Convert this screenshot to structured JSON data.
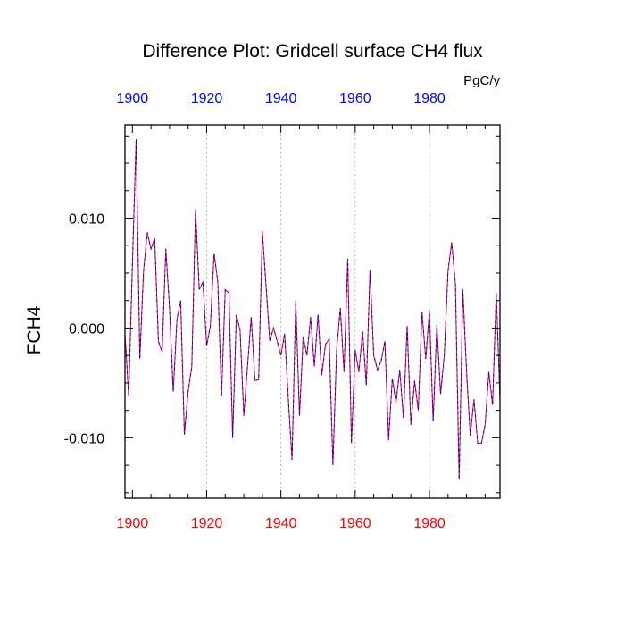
{
  "chart_data": {
    "type": "line",
    "title": "Difference Plot: Gridcell surface CH4 flux",
    "units_label": "PgC/y",
    "ylabel": "FCH4",
    "xlabel": "",
    "xlim": [
      1898,
      1999
    ],
    "ylim": [
      -0.0155,
      0.0185
    ],
    "x_ticks": [
      1900,
      1920,
      1940,
      1960,
      1980
    ],
    "x_tick_labels": [
      "1900",
      "1920",
      "1940",
      "1960",
      "1980"
    ],
    "x_minor_step": 5,
    "y_ticks": [
      -0.01,
      0.0,
      0.01
    ],
    "y_tick_labels": [
      "-0.010",
      "0.000",
      "0.010"
    ],
    "y_minor_step": 0.0025,
    "vertical_gridlines": [
      1920,
      1940,
      1960,
      1980
    ],
    "colors": {
      "bottom_axis_labels": "#ff0000",
      "top_axis_labels": "#0000ff",
      "series_1": "#ff0000",
      "series_2": "#0000ff",
      "grid": "#aaaaaa",
      "axis": "#000000"
    },
    "series": [
      {
        "name": "series-red",
        "color": "#ff0000",
        "x": [
          1898,
          1899,
          1900,
          1901,
          1902,
          1903,
          1904,
          1905,
          1906,
          1907,
          1908,
          1909,
          1910,
          1911,
          1912,
          1913,
          1914,
          1915,
          1916,
          1917,
          1918,
          1919,
          1920,
          1921,
          1922,
          1923,
          1924,
          1925,
          1926,
          1927,
          1928,
          1929,
          1930,
          1931,
          1932,
          1933,
          1934,
          1935,
          1936,
          1937,
          1938,
          1939,
          1940,
          1941,
          1942,
          1943,
          1944,
          1945,
          1946,
          1947,
          1948,
          1949,
          1950,
          1951,
          1952,
          1953,
          1954,
          1955,
          1956,
          1957,
          1958,
          1959,
          1960,
          1961,
          1962,
          1963,
          1964,
          1965,
          1966,
          1967,
          1968,
          1969,
          1970,
          1971,
          1972,
          1973,
          1974,
          1975,
          1976,
          1977,
          1978,
          1979,
          1980,
          1981,
          1982,
          1983,
          1984,
          1985,
          1986,
          1987,
          1988,
          1989,
          1990,
          1991,
          1992,
          1993,
          1994,
          1995,
          1996,
          1997,
          1998,
          1999
        ],
        "y": [
          -0.0005,
          -0.0062,
          0.0058,
          0.0172,
          -0.0028,
          0.0052,
          0.0087,
          0.0072,
          0.0082,
          -0.0012,
          -0.0022,
          0.0072,
          0.0018,
          -0.0058,
          0.0008,
          0.0025,
          -0.0097,
          -0.0058,
          -0.0035,
          0.0108,
          0.0035,
          0.0042,
          -0.0016,
          0.0002,
          0.0068,
          0.0042,
          -0.0062,
          0.0035,
          0.0032,
          -0.01,
          0.0012,
          -0.0002,
          -0.008,
          -0.0035,
          0.001,
          -0.0048,
          -0.0047,
          0.0088,
          0.0038,
          -0.0012,
          0.0,
          -0.0012,
          -0.0025,
          -0.0005,
          -0.0065,
          -0.012,
          0.0025,
          -0.008,
          -0.0008,
          -0.0025,
          0.001,
          -0.0035,
          0.0012,
          -0.0043,
          -0.0015,
          -0.001,
          -0.0125,
          -0.002,
          0.0018,
          -0.004,
          0.0063,
          -0.0105,
          -0.002,
          -0.004,
          -0.0003,
          -0.0052,
          0.0053,
          -0.0025,
          -0.0038,
          -0.003,
          -0.0012,
          -0.0102,
          -0.0046,
          -0.0068,
          -0.0038,
          -0.0082,
          0.0002,
          -0.0088,
          -0.0048,
          -0.0075,
          0.0015,
          -0.0028,
          0.0016,
          -0.0085,
          0.0003,
          -0.006,
          -0.0025,
          0.0052,
          0.0078,
          0.004,
          -0.0138,
          0.0035,
          -0.004,
          -0.0098,
          -0.0065,
          -0.0105,
          -0.0105,
          -0.0088,
          -0.004,
          -0.007,
          0.0032,
          -0.0065
        ]
      },
      {
        "name": "series-blue",
        "color": "#0000ff",
        "x": [
          1898,
          1899,
          1900,
          1901,
          1902,
          1903,
          1904,
          1905,
          1906,
          1907,
          1908,
          1909,
          1910,
          1911,
          1912,
          1913,
          1914,
          1915,
          1916,
          1917,
          1918,
          1919,
          1920,
          1921,
          1922,
          1923,
          1924,
          1925,
          1926,
          1927,
          1928,
          1929,
          1930,
          1931,
          1932,
          1933,
          1934,
          1935,
          1936,
          1937,
          1938,
          1939,
          1940,
          1941,
          1942,
          1943,
          1944,
          1945,
          1946,
          1947,
          1948,
          1949,
          1950,
          1951,
          1952,
          1953,
          1954,
          1955,
          1956,
          1957,
          1958,
          1959,
          1960,
          1961,
          1962,
          1963,
          1964,
          1965,
          1966,
          1967,
          1968,
          1969,
          1970,
          1971,
          1972,
          1973,
          1974,
          1975,
          1976,
          1977,
          1978,
          1979,
          1980,
          1981,
          1982,
          1983,
          1984,
          1985,
          1986,
          1987,
          1988,
          1989,
          1990,
          1991,
          1992,
          1993,
          1994,
          1995,
          1996,
          1997,
          1998,
          1999
        ],
        "y": [
          -0.0005,
          -0.0062,
          0.0058,
          0.0172,
          -0.0028,
          0.0052,
          0.0087,
          0.0072,
          0.0082,
          -0.0012,
          -0.0022,
          0.0072,
          0.0018,
          -0.0058,
          0.0008,
          0.0025,
          -0.0097,
          -0.0058,
          -0.0035,
          0.0108,
          0.0035,
          0.0042,
          -0.0016,
          0.0002,
          0.0068,
          0.0042,
          -0.0062,
          0.0035,
          0.0032,
          -0.01,
          0.0012,
          -0.0002,
          -0.008,
          -0.0035,
          0.001,
          -0.0048,
          -0.0047,
          0.0088,
          0.0038,
          -0.0012,
          0.0,
          -0.0012,
          -0.0025,
          -0.0005,
          -0.0065,
          -0.012,
          0.0025,
          -0.008,
          -0.0008,
          -0.0025,
          0.001,
          -0.0035,
          0.0012,
          -0.0043,
          -0.0015,
          -0.001,
          -0.0125,
          -0.002,
          0.0018,
          -0.004,
          0.0063,
          -0.0105,
          -0.002,
          -0.004,
          -0.0003,
          -0.0052,
          0.0053,
          -0.0025,
          -0.0038,
          -0.003,
          -0.0012,
          -0.0102,
          -0.0046,
          -0.0068,
          -0.0038,
          -0.0082,
          0.0002,
          -0.0088,
          -0.0048,
          -0.0075,
          0.0015,
          -0.0028,
          0.0016,
          -0.0085,
          0.0003,
          -0.006,
          -0.0025,
          0.0052,
          0.0078,
          0.004,
          -0.0138,
          0.0035,
          -0.004,
          -0.0098,
          -0.0065,
          -0.0105,
          -0.0105,
          -0.0088,
          -0.004,
          -0.007,
          0.0032,
          -0.0065
        ]
      }
    ]
  }
}
